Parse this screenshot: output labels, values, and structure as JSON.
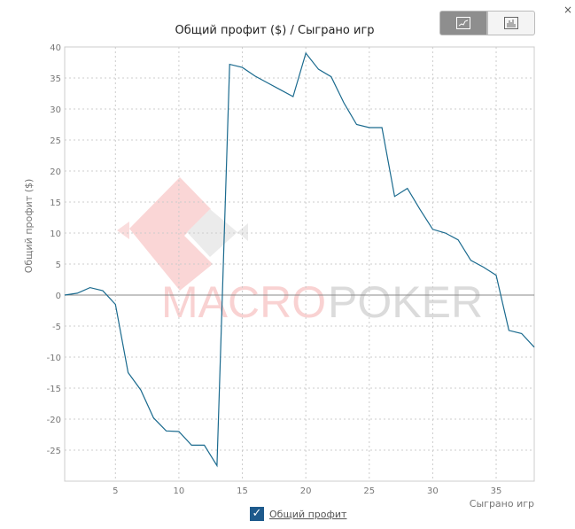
{
  "chart_data": {
    "type": "line",
    "title": "Общий профит ($) / Сыграно игр",
    "xlabel": "Сыграно игр",
    "ylabel": "Общий профит ($)",
    "xlim": [
      1,
      38
    ],
    "ylim": [
      -30,
      40
    ],
    "xticks": [
      5,
      10,
      15,
      20,
      25,
      30,
      35
    ],
    "yticks": [
      -25,
      -20,
      -15,
      -10,
      -5,
      0,
      5,
      10,
      15,
      20,
      25,
      30,
      35,
      40
    ],
    "grid": true,
    "series": [
      {
        "name": "Общий профит",
        "color": "#1a6a8e",
        "x": [
          1,
          2,
          3,
          4,
          5,
          6,
          7,
          8,
          9,
          10,
          11,
          12,
          13,
          14,
          15,
          16,
          17,
          18,
          19,
          20,
          21,
          22,
          23,
          24,
          25,
          26,
          27,
          28,
          29,
          30,
          31,
          32,
          33,
          34,
          35,
          36,
          37,
          38
        ],
        "values": [
          0,
          0.3,
          1.2,
          0.7,
          -1.5,
          -12.5,
          -15.3,
          -19.8,
          -21.9,
          -22,
          -24.2,
          -24.2,
          -27.5,
          37.2,
          36.7,
          35.3,
          34.2,
          33.1,
          32,
          39,
          36.4,
          35.2,
          31,
          27.5,
          27,
          27,
          15.9,
          17.2,
          13.8,
          10.6,
          10,
          8.9,
          5.6,
          4.5,
          3.2,
          -5.7,
          -6.2,
          -8.4
        ]
      }
    ],
    "legend": "bottom"
  },
  "watermark": "MACROPOKER",
  "toolbar": {
    "line_icon": "line-chart-icon",
    "bar_icon": "bar-chart-icon",
    "close": "×"
  }
}
